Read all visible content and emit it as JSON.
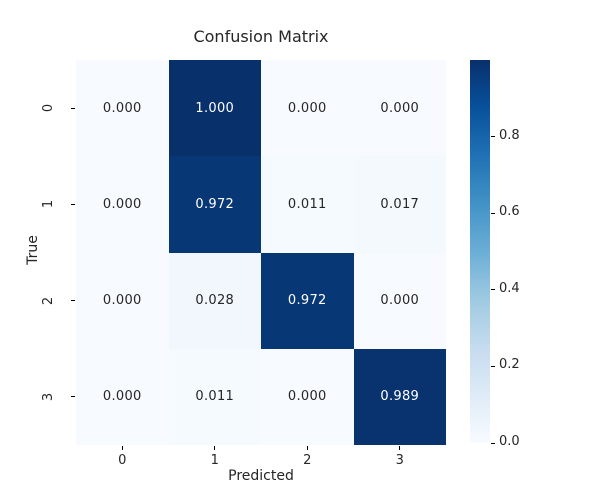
{
  "chart_data": {
    "type": "heatmap",
    "title": "Confusion Matrix",
    "xlabel": "Predicted",
    "ylabel": "True",
    "x_ticklabels": [
      "0",
      "1",
      "2",
      "3"
    ],
    "y_ticklabels": [
      "0",
      "1",
      "2",
      "3"
    ],
    "values": [
      [
        0.0,
        1.0,
        0.0,
        0.0
      ],
      [
        0.0,
        0.972,
        0.011,
        0.017
      ],
      [
        0.0,
        0.028,
        0.972,
        0.0
      ],
      [
        0.0,
        0.011,
        0.0,
        0.989
      ]
    ],
    "annotation_decimals": 3,
    "colormap": "Blues",
    "colormap_stops": [
      [
        0.0,
        "#f7fbff"
      ],
      [
        0.125,
        "#deebf7"
      ],
      [
        0.25,
        "#c6dbef"
      ],
      [
        0.375,
        "#9ecae1"
      ],
      [
        0.5,
        "#6baed6"
      ],
      [
        0.625,
        "#4292c6"
      ],
      [
        0.75,
        "#2171b5"
      ],
      [
        0.875,
        "#08519c"
      ],
      [
        1.0,
        "#08306b"
      ]
    ],
    "colorbar": {
      "vmin": 0.0,
      "vmax": 1.0,
      "ticks": [
        {
          "value": 0.0,
          "label": "0.0"
        },
        {
          "value": 0.2,
          "label": "0.2"
        },
        {
          "value": 0.4,
          "label": "0.4"
        },
        {
          "value": 0.6,
          "label": "0.6"
        },
        {
          "value": 0.8,
          "label": "0.8"
        }
      ]
    },
    "legend_position": "none",
    "grid": false
  },
  "colors": {
    "background": "#ffffff",
    "annot_dark": "#262626",
    "annot_light": "#ffffff",
    "tick_mark": "#000000"
  }
}
